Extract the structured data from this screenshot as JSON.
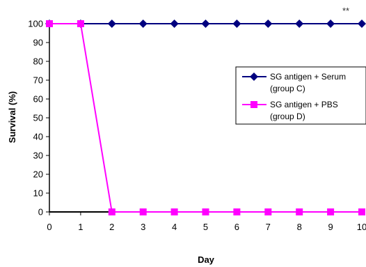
{
  "chart_data": {
    "type": "line",
    "title": "",
    "xlabel": "Day",
    "ylabel": "Survival (%)",
    "x": [
      0,
      1,
      2,
      3,
      4,
      5,
      6,
      7,
      8,
      9,
      10
    ],
    "xlim": [
      0,
      10
    ],
    "ylim": [
      0,
      100
    ],
    "yticks": [
      0,
      10,
      20,
      30,
      40,
      50,
      60,
      70,
      80,
      90,
      100
    ],
    "grid": false,
    "legend_position": "right",
    "annotation": "**",
    "series": [
      {
        "name_line1": "SG antigen + Serum",
        "name_line2": "(group C)",
        "color": "#00007f",
        "marker": "diamond",
        "values": [
          100,
          100,
          100,
          100,
          100,
          100,
          100,
          100,
          100,
          100,
          100
        ]
      },
      {
        "name_line1": "SG antigen + PBS",
        "name_line2": "(group D)",
        "color": "#ff00ff",
        "marker": "square",
        "values": [
          100,
          100,
          0,
          0,
          0,
          0,
          0,
          0,
          0,
          0,
          0
        ]
      }
    ]
  }
}
